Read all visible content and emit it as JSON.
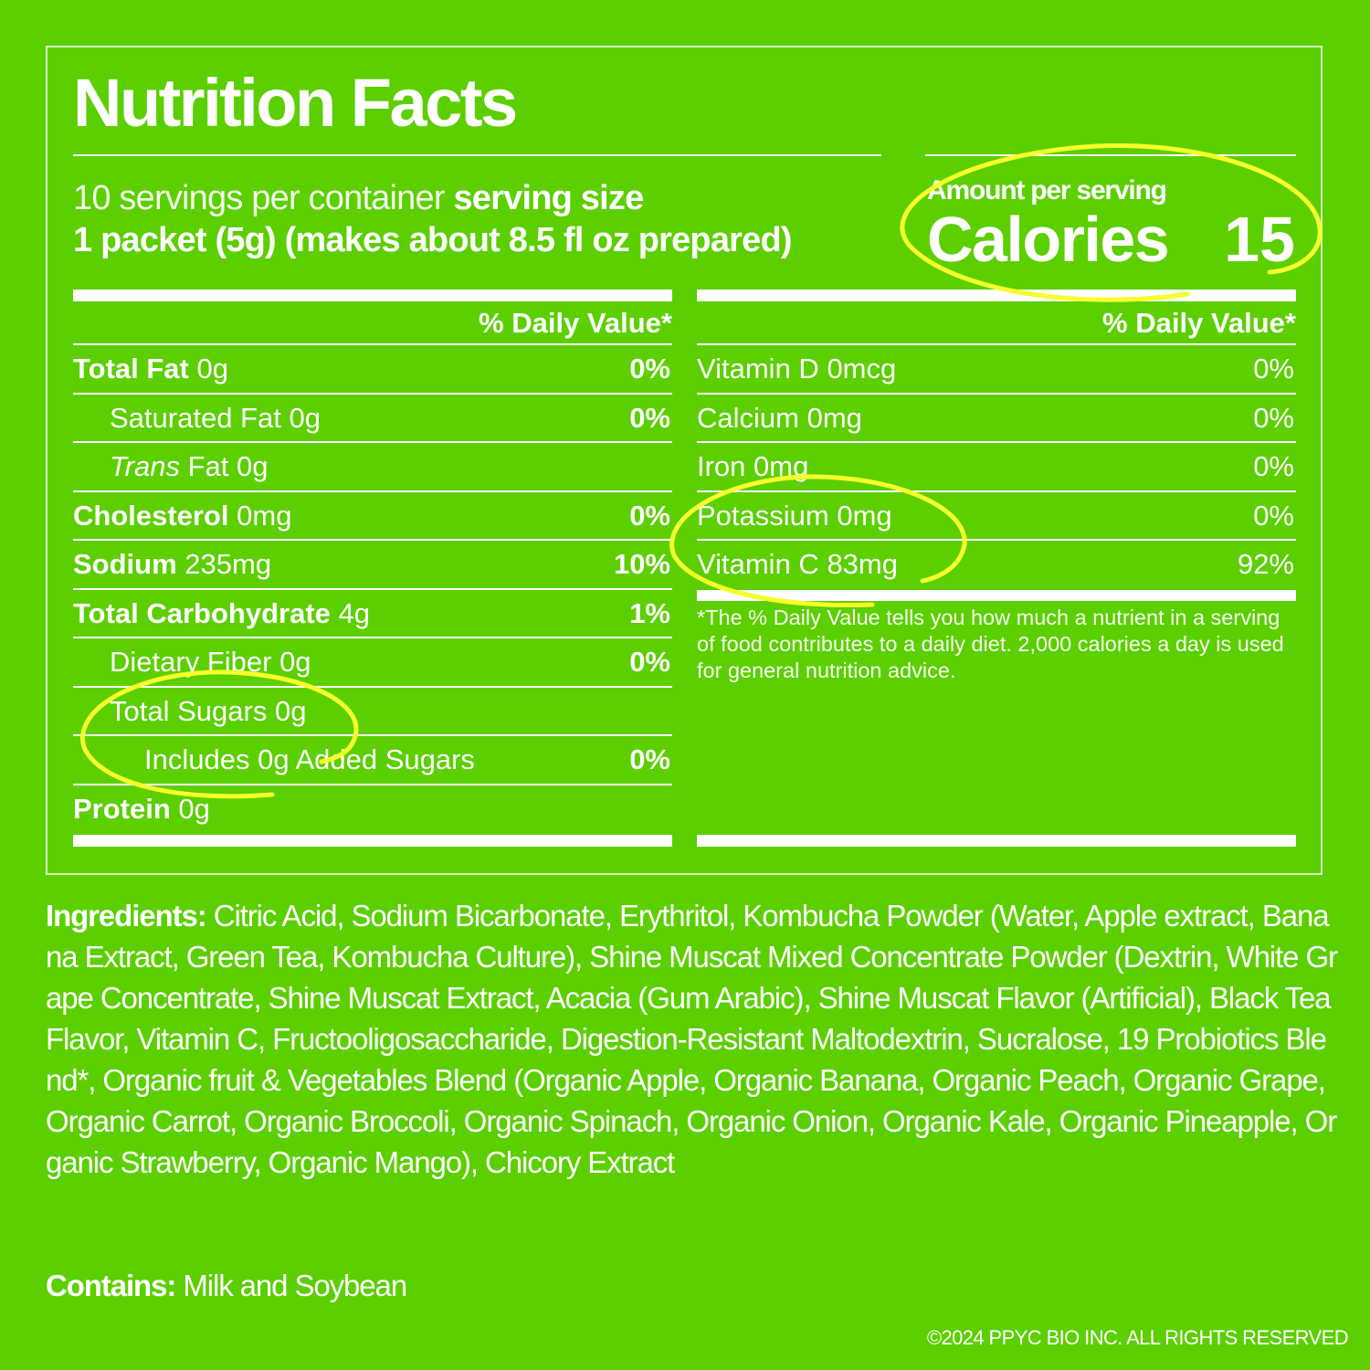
{
  "colors": {
    "background": "#5ccf00",
    "text": "#ffffff",
    "highlight": "#f5ff2a"
  },
  "title": "Nutrition Facts",
  "serving": {
    "per_container": "10 servings per container",
    "size_label": "serving size",
    "size_value": "1 packet (5g) (makes about 8.5 fl oz prepared)"
  },
  "calories": {
    "amount_label": "Amount per serving",
    "label": "Calories",
    "value": "15"
  },
  "left_table": {
    "header": "% Daily Value*",
    "rows": [
      {
        "name": "Total Fat",
        "amount": "0g",
        "dv": "0%"
      },
      {
        "name": "Saturated Fat",
        "amount": "0g",
        "dv": "0%"
      },
      {
        "name_italic": "Trans",
        "name": "Fat",
        "amount": "0g",
        "dv": ""
      },
      {
        "name": "Cholesterol",
        "amount": "0mg",
        "dv": "0%"
      },
      {
        "name": "Sodium",
        "amount": "235mg",
        "dv": "10%"
      },
      {
        "name": "Total Carbohydrate",
        "amount": "4g",
        "dv": "1%"
      },
      {
        "name": "Dietary Fiber",
        "amount": "0g",
        "dv": "0%"
      },
      {
        "name": "Total Sugars",
        "amount": "0g",
        "dv": ""
      },
      {
        "name": "Includes 0g Added Sugars",
        "amount": "",
        "dv": "0%"
      },
      {
        "name": "Protein",
        "amount": "0g",
        "dv": ""
      }
    ]
  },
  "right_table": {
    "header": "% Daily Value*",
    "rows": [
      {
        "name": "Vitamin D",
        "amount": "0mcg",
        "dv": "0%"
      },
      {
        "name": "Calcium",
        "amount": "0mg",
        "dv": "0%"
      },
      {
        "name": "Iron",
        "amount": "0mg",
        "dv": "0%"
      },
      {
        "name": "Potassium",
        "amount": "0mg",
        "dv": "0%"
      },
      {
        "name": "Vitamin C",
        "amount": "83mg",
        "dv": "92%"
      }
    ],
    "footnote": "*The % Daily Value tells you how much a nutrient in a serving of food contributes to a daily diet. 2,000 calories a day is used for general nutrition advice."
  },
  "ingredients": {
    "label": "Ingredients:",
    "text": "Citric Acid, Sodium Bicarbonate, Erythritol, Kombucha Powder (Water, Apple extract, Banana Extract, Green Tea, Kombucha Culture), Shine Muscat Mixed Concentrate Powder (Dextrin, White Grape Concentrate, Shine Muscat Extract, Acacia (Gum Arabic), Shine Muscat Flavor (Artificial), Black Tea Flavor, Vitamin C, Fructooligosaccharide, Digestion-Resistant Maltodextrin, Sucralose, 19 Probiotics Blend*, Organic fruit & Vegetables Blend (Organic Apple, Organic Banana, Organic Peach, Organic Grape, Organic Carrot, Organic Broccoli, Organic Spinach, Organic Onion, Organic Kale, Organic Pineapple, Organic Strawberry, Organic Mango), Chicory Extract"
  },
  "contains": {
    "label": "Contains:",
    "text": "Milk and Soybean"
  },
  "copyright": "©2024 PPYC BIO INC. ALL RIGHTS RESERVED"
}
